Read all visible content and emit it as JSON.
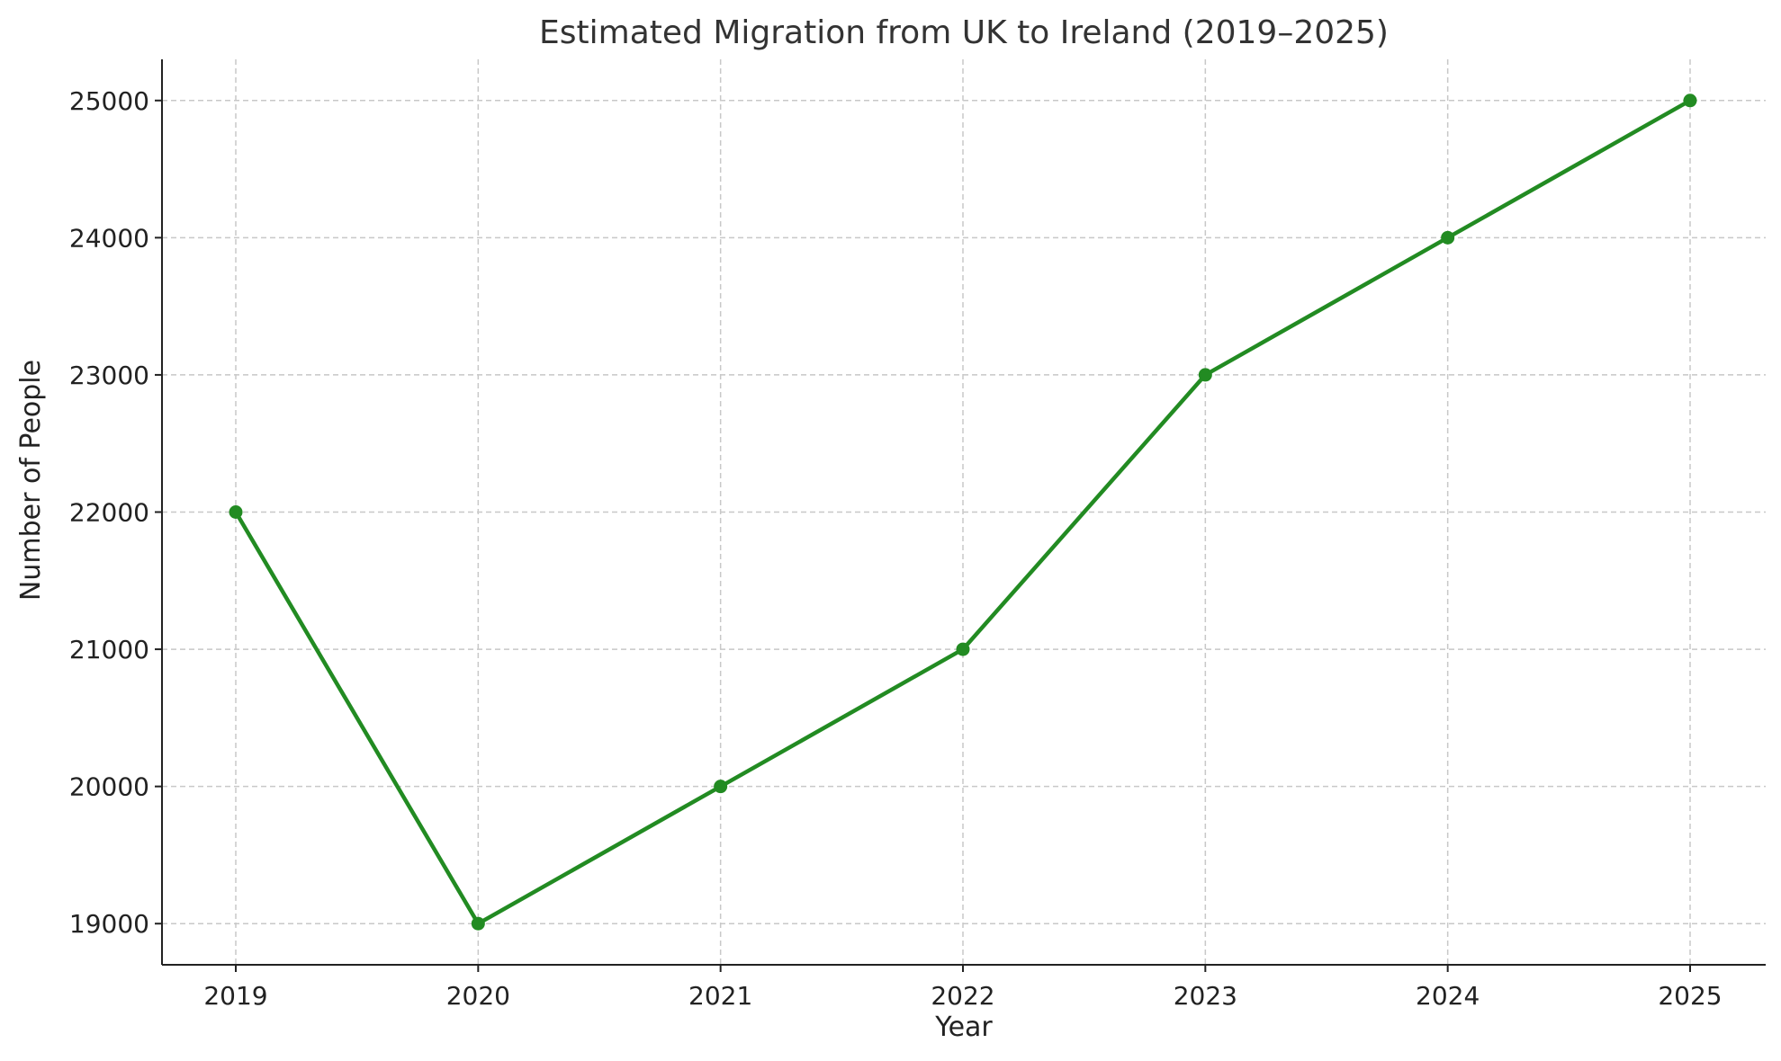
{
  "chart_data": {
    "type": "line",
    "title": "Estimated Migration from UK to Ireland (2019–2025)",
    "xlabel": "Year",
    "ylabel": "Number of People",
    "x": [
      "2019",
      "2020",
      "2021",
      "2022",
      "2023",
      "2024",
      "2025"
    ],
    "series": [
      {
        "values": [
          22000,
          19000,
          20000,
          21000,
          23000,
          24000,
          25000
        ],
        "color": "#228B22",
        "marker": "circle"
      }
    ],
    "yticks": [
      19000,
      20000,
      21000,
      22000,
      23000,
      24000,
      25000
    ],
    "ylim": [
      18700,
      25300
    ],
    "grid": true,
    "grid_style": "dashed"
  }
}
